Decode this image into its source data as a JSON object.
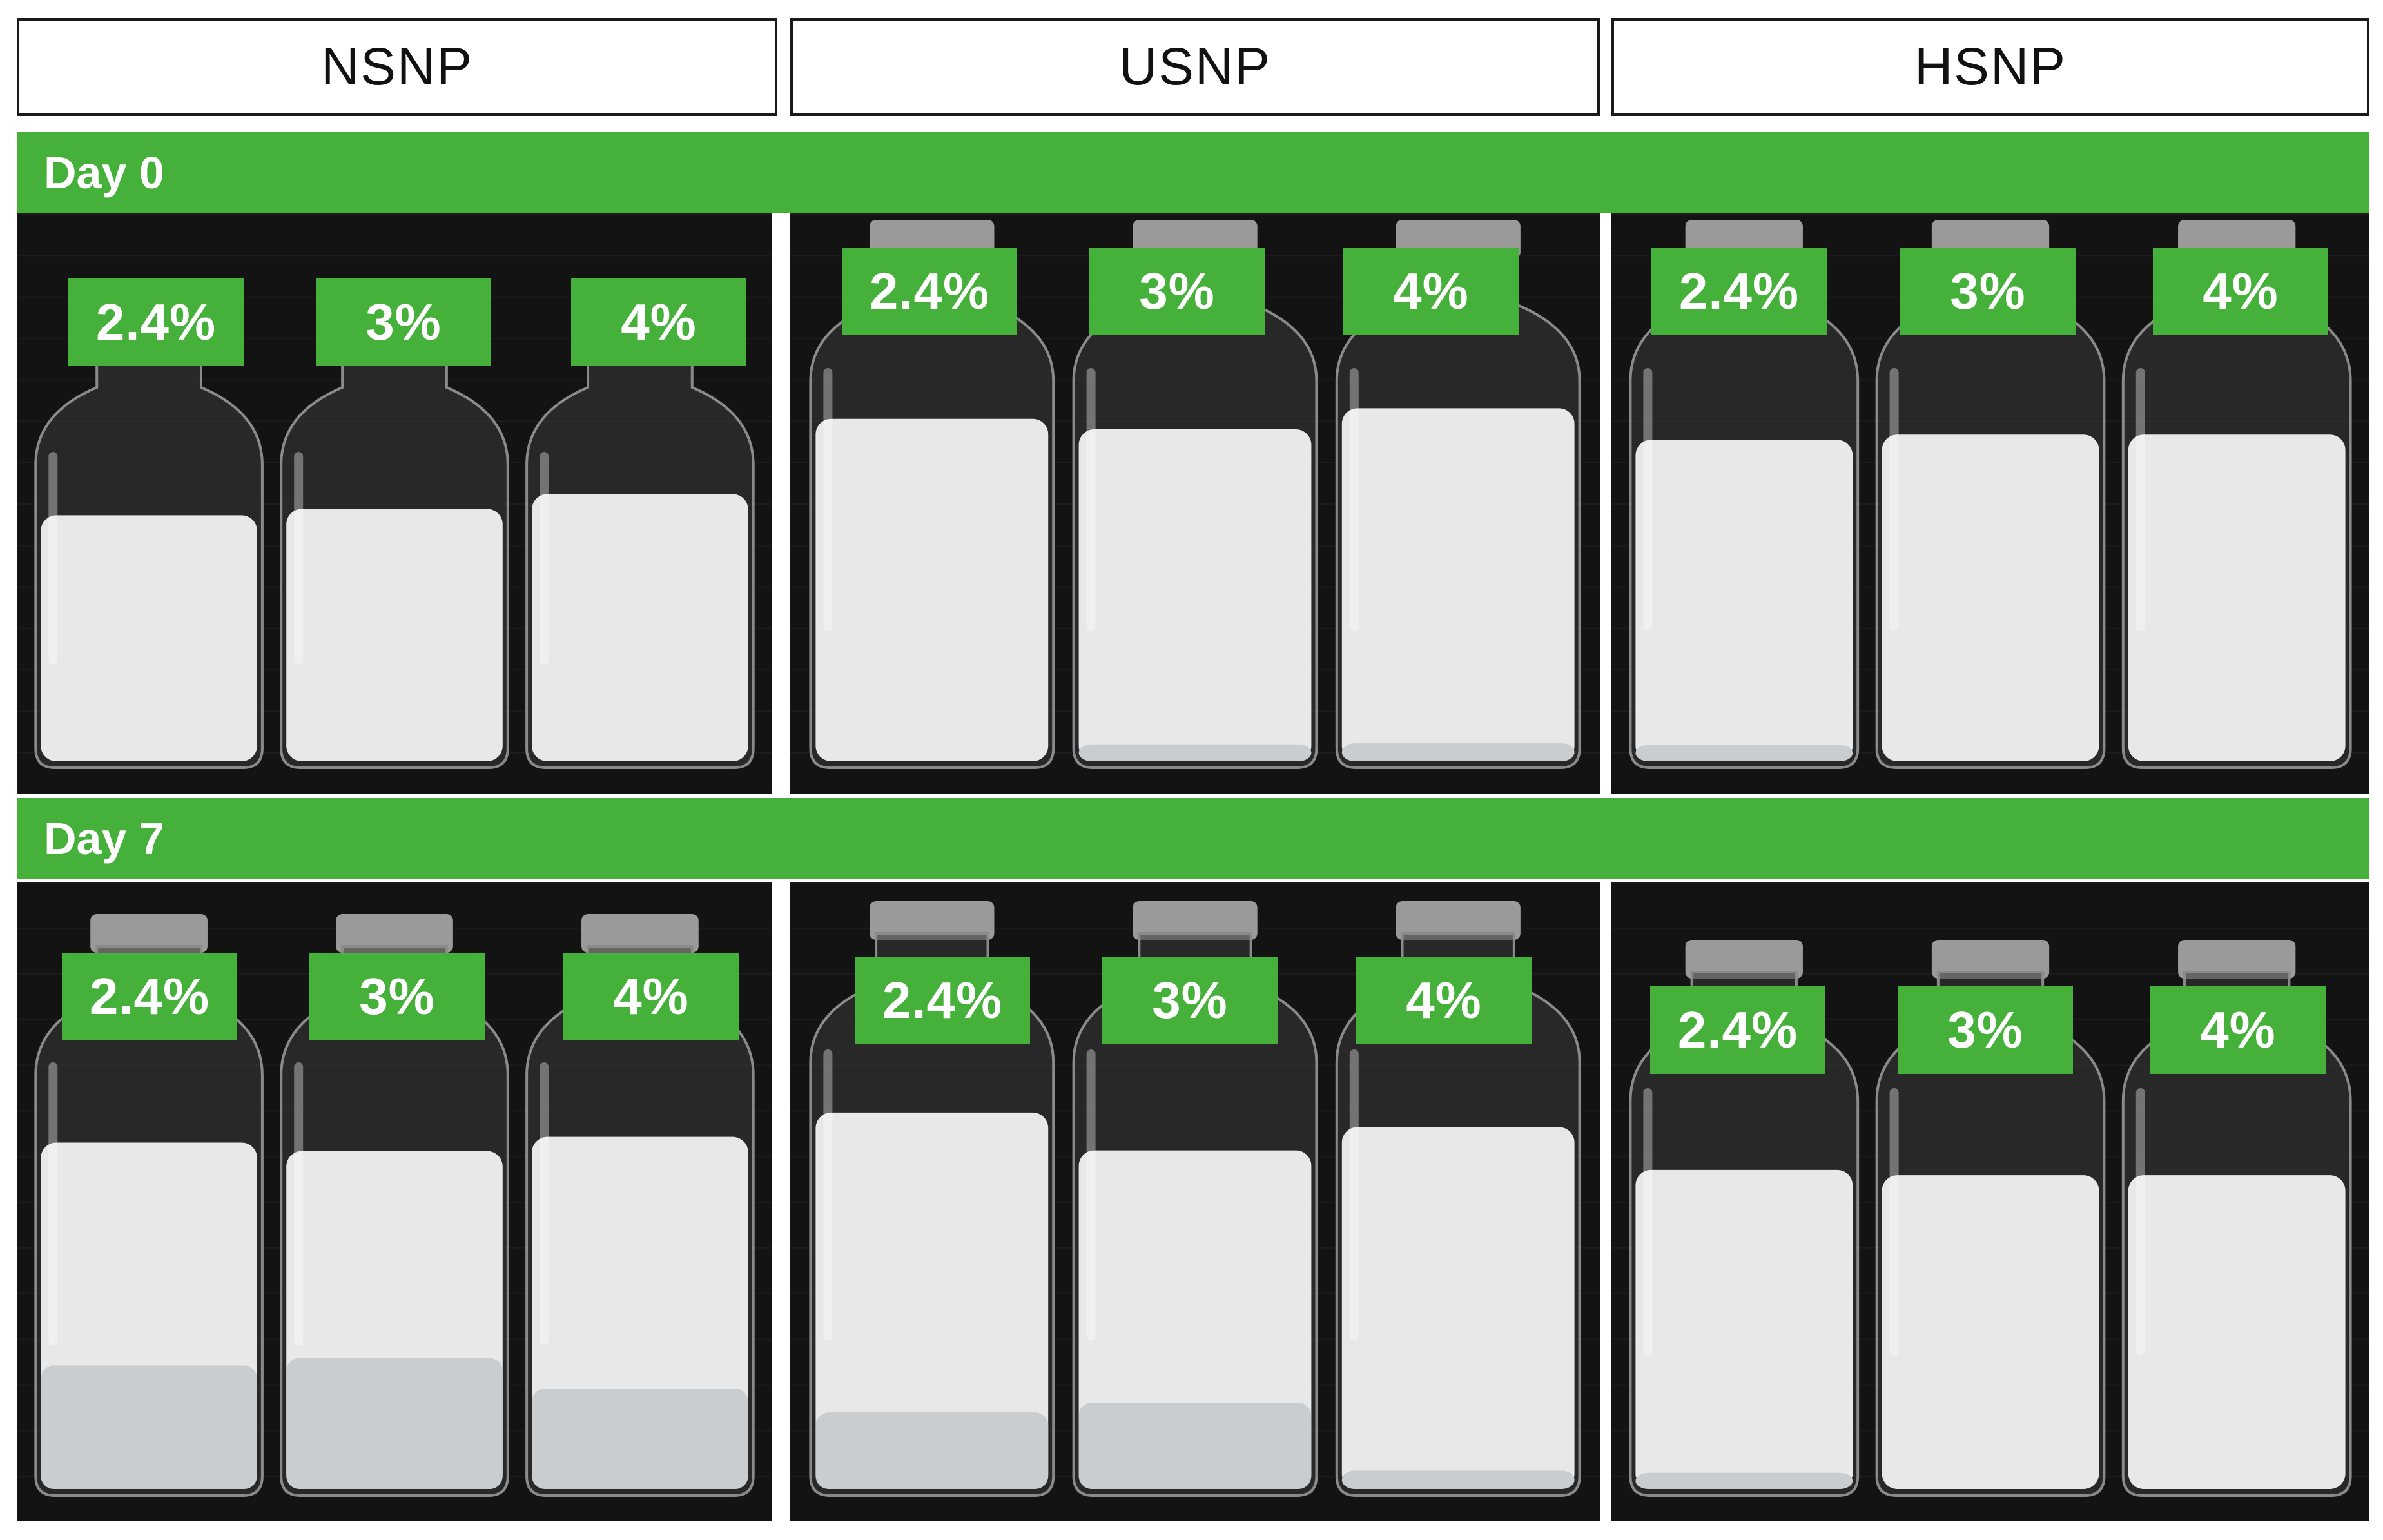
{
  "columns": [
    "NSNP",
    "USNP",
    "HSNP"
  ],
  "rows": [
    {
      "label": "Day 0",
      "concentrations": [
        "2.4%",
        "3%",
        "4%"
      ]
    },
    {
      "label": "Day 7",
      "concentrations": [
        "2.4%",
        "3%",
        "4%"
      ]
    }
  ],
  "colors": {
    "accent_green": "#45b03a",
    "panel_background": "#111111",
    "liquid": "#e8e8e8"
  },
  "vials": {
    "day0": {
      "NSNP": [
        {
          "liquid_top": 0.48,
          "clear_bottom": 0.0
        },
        {
          "liquid_top": 0.45,
          "clear_bottom": 0.0
        },
        {
          "liquid_top": 0.38,
          "clear_bottom": 0.0
        }
      ],
      "USNP": [
        {
          "liquid_top": 0.34,
          "clear_bottom": 0.0
        },
        {
          "liquid_top": 0.38,
          "clear_bottom": 0.05
        },
        {
          "liquid_top": 0.3,
          "clear_bottom": 0.05
        }
      ],
      "HSNP": [
        {
          "liquid_top": 0.42,
          "clear_bottom": 0.05
        },
        {
          "liquid_top": 0.4,
          "clear_bottom": 0.0
        },
        {
          "liquid_top": 0.4,
          "clear_bottom": 0.0
        }
      ]
    },
    "day7": {
      "NSNP": [
        {
          "liquid_top": 0.42,
          "clear_bottom": 0.35
        },
        {
          "liquid_top": 0.45,
          "clear_bottom": 0.38
        },
        {
          "liquid_top": 0.4,
          "clear_bottom": 0.28
        }
      ],
      "USNP": [
        {
          "liquid_top": 0.35,
          "clear_bottom": 0.2
        },
        {
          "liquid_top": 0.48,
          "clear_bottom": 0.25
        },
        {
          "liquid_top": 0.4,
          "clear_bottom": 0.05
        }
      ],
      "HSNP": [
        {
          "liquid_top": 0.45,
          "clear_bottom": 0.05
        },
        {
          "liquid_top": 0.47,
          "clear_bottom": 0.0
        },
        {
          "liquid_top": 0.47,
          "clear_bottom": 0.0
        }
      ]
    }
  }
}
